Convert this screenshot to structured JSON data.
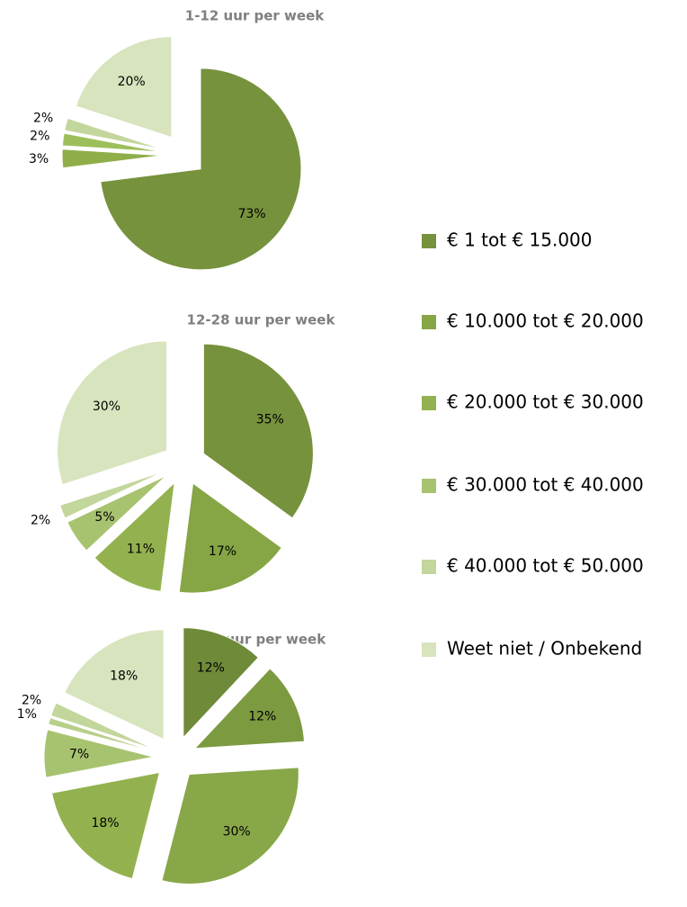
{
  "legend": {
    "labels": [
      "€ 1 tot € 15.000",
      "€ 10.000 tot € 20.000",
      "€ 20.000 tot € 30.000",
      "€ 30.000 tot € 40.000",
      "€ 40.000 tot € 50.000",
      "Weet niet / Onbekend"
    ],
    "colors": [
      "#76923c",
      "#86a545",
      "#93b24f",
      "#a8c370",
      "#c3d69b",
      "#d7e4bd"
    ]
  },
  "chart_data": [
    {
      "type": "pie",
      "title": "1-12 uur per week",
      "values": [
        73,
        0,
        3,
        2,
        2,
        20
      ],
      "value_labels": [
        "73%",
        null,
        "3%",
        "2%",
        "2%",
        "20%"
      ],
      "colors": [
        "#76923c",
        "#86a545",
        "#8fae4a",
        "#9dbf5a",
        "#c3d69b",
        "#d7e4bd"
      ]
    },
    {
      "type": "pie",
      "title": "12-28 uur per week",
      "values": [
        35,
        17,
        11,
        5,
        2,
        30
      ],
      "value_labels": [
        "35%",
        "17%",
        "11%",
        "5%",
        "2%",
        "30%"
      ],
      "colors": [
        "#76923c",
        "#86a545",
        "#93b24f",
        "#a8c370",
        "#c3d69b",
        "#d7e4bd"
      ]
    },
    {
      "type": "pie",
      "title": ">28 uur per week",
      "values": [
        12,
        12,
        30,
        18,
        7,
        1,
        2,
        18
      ],
      "value_labels": [
        "12%",
        "12%",
        "30%",
        "18%",
        "7%",
        "1%",
        "2%",
        "18%"
      ],
      "colors": [
        "#6f8a39",
        "#7c9a40",
        "#88a748",
        "#93b24f",
        "#a8c370",
        "#b8cf8a",
        "#c3d69b",
        "#d7e4bd"
      ]
    }
  ]
}
